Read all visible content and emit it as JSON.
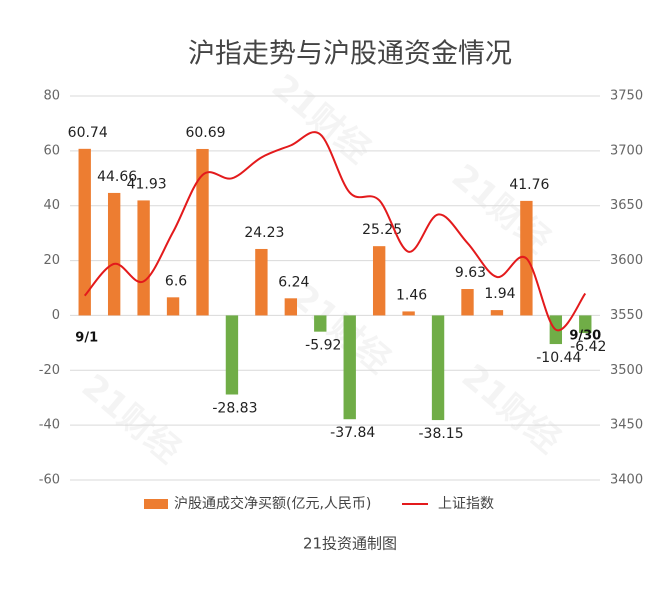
{
  "chart_data": {
    "type": "bar_line",
    "title": "沪指走势与沪股通资金情况",
    "footer": "21投资通制图",
    "watermark": "21财经",
    "categories": [
      "9/1",
      null,
      null,
      null,
      null,
      null,
      null,
      null,
      null,
      null,
      null,
      null,
      null,
      null,
      null,
      null,
      null,
      "9/30"
    ],
    "series": [
      {
        "name": "沪股通成交净买额(亿元,人民币)",
        "type": "bar",
        "color": "#ed7d31",
        "negative_color": "#70ad47",
        "values": [
          60.74,
          44.66,
          41.93,
          6.6,
          60.69,
          -28.83,
          24.23,
          6.24,
          -5.92,
          -37.84,
          25.25,
          1.46,
          -38.15,
          9.63,
          1.94,
          41.76,
          -10.44,
          -6.42
        ]
      },
      {
        "name": "上证指数",
        "type": "line",
        "color": "#e31a1c",
        "axis": "y2",
        "values": [
          3568,
          3597,
          3581,
          3626,
          3678,
          3675,
          3694,
          3705,
          3715,
          3662,
          3655,
          3608,
          3642,
          3616,
          3585,
          3602,
          3537,
          3570
        ]
      }
    ],
    "ylim": [
      -60,
      80
    ],
    "yticks": [
      -60,
      -40,
      -20,
      0,
      20,
      40,
      60,
      80
    ],
    "y2lim": [
      3400,
      3750
    ],
    "y2ticks": [
      3400,
      3450,
      3500,
      3550,
      3600,
      3650,
      3700,
      3750
    ],
    "grid": true,
    "legend": "bottom"
  }
}
